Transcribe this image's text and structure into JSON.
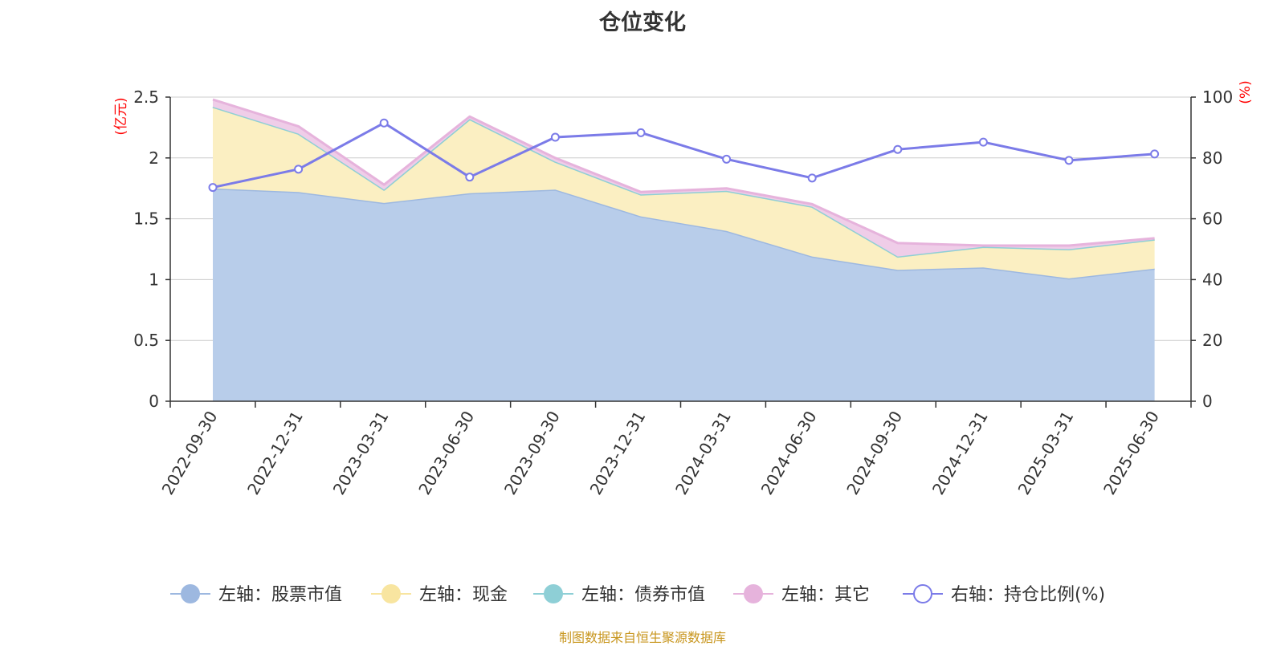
{
  "title": "仓位变化",
  "source": "制图数据来自恒生聚源数据库",
  "chart_data": {
    "type": "area",
    "stacked": true,
    "categories": [
      "2022-09-30",
      "2022-12-31",
      "2023-03-31",
      "2023-06-30",
      "2023-09-30",
      "2023-12-31",
      "2024-03-31",
      "2024-06-30",
      "2024-09-30",
      "2024-12-31",
      "2025-03-31",
      "2025-06-30"
    ],
    "left_axis": {
      "unit": "(亿元)",
      "ylim": [
        0,
        2.5
      ],
      "ticks": [
        "0",
        "0.5",
        "1",
        "1.5",
        "2",
        "2.5"
      ]
    },
    "right_axis": {
      "unit": "(%)",
      "ylim": [
        0,
        100
      ],
      "ticks": [
        "0",
        "20",
        "40",
        "60",
        "80",
        "100"
      ]
    },
    "series": [
      {
        "name": "左轴：股票市值",
        "axis": "left",
        "kind": "area",
        "color": "#9db8e0",
        "fill": "#b8cdea",
        "values": [
          1.75,
          1.72,
          1.63,
          1.71,
          1.74,
          1.52,
          1.4,
          1.19,
          1.08,
          1.1,
          1.01,
          1.09
        ]
      },
      {
        "name": "左轴：现金",
        "axis": "left",
        "kind": "area",
        "color": "#f8e5a0",
        "fill": "#fbefc2",
        "values": [
          0.67,
          0.48,
          0.11,
          0.61,
          0.23,
          0.18,
          0.33,
          0.41,
          0.11,
          0.17,
          0.24,
          0.24
        ]
      },
      {
        "name": "左轴：债券市值",
        "axis": "left",
        "kind": "area",
        "color": "#8ecfd6",
        "fill": "#b6e2e6",
        "values": [
          0,
          0,
          0,
          0,
          0,
          0,
          0,
          0,
          0,
          0,
          0,
          0
        ]
      },
      {
        "name": "左轴：其它",
        "axis": "left",
        "kind": "area",
        "color": "#e6b3dc",
        "fill": "#efcde8",
        "values": [
          0.06,
          0.06,
          0.04,
          0.02,
          0.03,
          0.02,
          0.02,
          0.02,
          0.11,
          0.01,
          0.03,
          0.01
        ]
      },
      {
        "name": "右轴：持仓比例(%)",
        "axis": "right",
        "kind": "line",
        "color": "#7b7be8",
        "values": [
          70.3,
          76.3,
          91.5,
          73.7,
          86.8,
          88.3,
          79.6,
          73.4,
          82.8,
          85.2,
          79.2,
          81.3
        ]
      }
    ]
  }
}
